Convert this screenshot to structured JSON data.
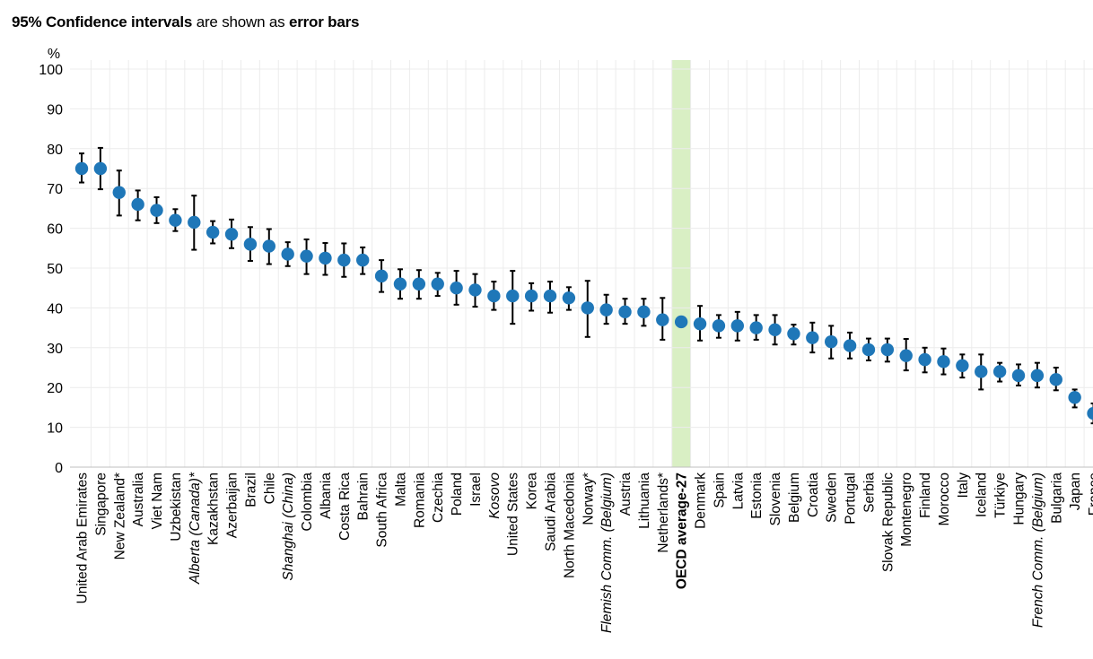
{
  "title_parts": {
    "bold1": "95% Confidence intervals",
    "normal": "are shown as",
    "bold2": "error bars"
  },
  "chart_data": {
    "type": "scatter",
    "ylabel": "%",
    "ylim": [
      0,
      100
    ],
    "yticks": [
      0,
      10,
      20,
      30,
      40,
      50,
      60,
      70,
      80,
      90,
      100
    ],
    "grid": true,
    "highlight_category": "OECD average-27",
    "colors": {
      "point": "#1f77b8",
      "errorbar": "#000000",
      "highlight_band": "#d9efc4",
      "highlight_text": "#8cc63f",
      "grid": "#ececec"
    },
    "categories": [
      {
        "label": "United Arab Emirates",
        "value": 75,
        "low": 71.5,
        "high": 78.8
      },
      {
        "label": "Singapore",
        "value": 75,
        "low": 69.8,
        "high": 80.2
      },
      {
        "label": "New Zealand*",
        "value": 69,
        "low": 63.2,
        "high": 74.5
      },
      {
        "label": "Australia",
        "value": 66,
        "low": 62,
        "high": 69.5
      },
      {
        "label": "Viet Nam",
        "value": 64.5,
        "low": 61.3,
        "high": 67.8
      },
      {
        "label": "Uzbekistan",
        "value": 62,
        "low": 59.3,
        "high": 64.8
      },
      {
        "label": "Alberta (Canada)*",
        "value": 61.5,
        "low": 54.6,
        "high": 68.2,
        "italic": true
      },
      {
        "label": "Kazakhstan",
        "value": 59,
        "low": 56.2,
        "high": 61.8
      },
      {
        "label": "Azerbaijan",
        "value": 58.5,
        "low": 55,
        "high": 62.2
      },
      {
        "label": "Brazil",
        "value": 56,
        "low": 51.8,
        "high": 60.3
      },
      {
        "label": "Chile",
        "value": 55.5,
        "low": 51,
        "high": 59.8
      },
      {
        "label": "Shanghai (China)",
        "value": 53.5,
        "low": 50.5,
        "high": 56.5,
        "italic": true
      },
      {
        "label": "Colombia",
        "value": 53,
        "low": 48.5,
        "high": 57.2
      },
      {
        "label": "Albania",
        "value": 52.5,
        "low": 48.3,
        "high": 56.3
      },
      {
        "label": "Costa Rica",
        "value": 52,
        "low": 47.8,
        "high": 56.2
      },
      {
        "label": "Bahrain",
        "value": 52,
        "low": 48.5,
        "high": 55.2
      },
      {
        "label": "South Africa",
        "value": 48,
        "low": 44,
        "high": 52
      },
      {
        "label": "Malta",
        "value": 46,
        "low": 42.3,
        "high": 49.7
      },
      {
        "label": "Romania",
        "value": 46,
        "low": 42.3,
        "high": 49.5
      },
      {
        "label": "Czechia",
        "value": 46,
        "low": 43,
        "high": 48.8
      },
      {
        "label": "Poland",
        "value": 45,
        "low": 40.8,
        "high": 49.3
      },
      {
        "label": "Israel",
        "value": 44.5,
        "low": 40.3,
        "high": 48.5
      },
      {
        "label": "Kosovo",
        "value": 43,
        "low": 39.5,
        "high": 46.6,
        "italic": true
      },
      {
        "label": "United States",
        "value": 43,
        "low": 36,
        "high": 49.3
      },
      {
        "label": "Korea",
        "value": 43,
        "low": 39.3,
        "high": 46.2
      },
      {
        "label": "Saudi Arabia",
        "value": 43,
        "low": 38.8,
        "high": 46.6
      },
      {
        "label": "North Macedonia",
        "value": 42.5,
        "low": 39.5,
        "high": 45.2
      },
      {
        "label": "Norway*",
        "value": 40,
        "low": 32.7,
        "high": 46.8
      },
      {
        "label": "Flemish Comm. (Belgium)",
        "value": 39.5,
        "low": 36,
        "high": 43.3,
        "italic": true
      },
      {
        "label": "Austria",
        "value": 39,
        "low": 36,
        "high": 42.3
      },
      {
        "label": "Lithuania",
        "value": 39,
        "low": 35.5,
        "high": 42.3
      },
      {
        "label": "Netherlands*",
        "value": 37,
        "low": 32,
        "high": 42.5
      },
      {
        "label": "OECD average-27",
        "value": 36.5,
        "low": null,
        "high": null,
        "highlight": true
      },
      {
        "label": "Denmark",
        "value": 36,
        "low": 31.8,
        "high": 40.5
      },
      {
        "label": "Spain",
        "value": 35.5,
        "low": 32.5,
        "high": 38.2
      },
      {
        "label": "Latvia",
        "value": 35.5,
        "low": 31.8,
        "high": 39
      },
      {
        "label": "Estonia",
        "value": 35,
        "low": 32,
        "high": 38.2
      },
      {
        "label": "Slovenia",
        "value": 34.5,
        "low": 30.8,
        "high": 38.2
      },
      {
        "label": "Belgium",
        "value": 33.5,
        "low": 30.8,
        "high": 35.8
      },
      {
        "label": "Croatia",
        "value": 32.5,
        "low": 28.8,
        "high": 36.3
      },
      {
        "label": "Sweden",
        "value": 31.5,
        "low": 27.3,
        "high": 35.5
      },
      {
        "label": "Portugal",
        "value": 30.5,
        "low": 27.3,
        "high": 33.8
      },
      {
        "label": "Serbia",
        "value": 29.5,
        "low": 26.8,
        "high": 32.3
      },
      {
        "label": "Slovak Republic",
        "value": 29.5,
        "low": 26.5,
        "high": 32.3
      },
      {
        "label": "Montenegro",
        "value": 28,
        "low": 24.3,
        "high": 32.2
      },
      {
        "label": "Finland",
        "value": 27,
        "low": 23.8,
        "high": 30
      },
      {
        "label": "Morocco",
        "value": 26.5,
        "low": 23.3,
        "high": 29.8
      },
      {
        "label": "Italy",
        "value": 25.5,
        "low": 22.5,
        "high": 28.3
      },
      {
        "label": "Iceland",
        "value": 24,
        "low": 19.5,
        "high": 28.3
      },
      {
        "label": "Türkiye",
        "value": 24,
        "low": 21.5,
        "high": 26.2
      },
      {
        "label": "Hungary",
        "value": 23,
        "low": 20.5,
        "high": 25.8
      },
      {
        "label": "French Comm. (Belgium)",
        "value": 23,
        "low": 20,
        "high": 26.2,
        "italic": true
      },
      {
        "label": "Bulgaria",
        "value": 22,
        "low": 19.3,
        "high": 25
      },
      {
        "label": "Japan",
        "value": 17.5,
        "low": 15,
        "high": 19.5
      },
      {
        "label": "France",
        "value": 13.5,
        "low": 11,
        "high": 16
      }
    ]
  }
}
